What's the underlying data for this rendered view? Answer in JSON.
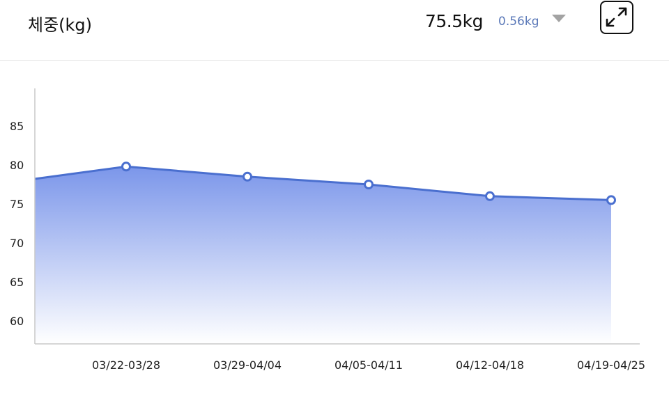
{
  "header": {
    "title": "체중(kg)",
    "current_value": "75.5kg",
    "change_value": "0.56kg",
    "change_direction": "down",
    "expand_icon": "expand-arrows-icon"
  },
  "chart_data": {
    "type": "area",
    "categories": [
      "03/22-03/28",
      "03/29-04/04",
      "04/05-04/11",
      "04/12-04/18",
      "04/19-04/25"
    ],
    "series": [
      {
        "values": [
          79.8,
          78.5,
          77.5,
          76.0,
          75.5
        ]
      }
    ],
    "leading_value_offscreen": 77.7,
    "yticks": [
      60,
      65,
      70,
      75,
      80,
      85
    ],
    "ylim": [
      57,
      90
    ],
    "grid": false,
    "legend": "none",
    "colors": {
      "line": "#4a6fcf",
      "fill_top": "#7b96ea",
      "fill_bottom": "#ffffff",
      "marker_fill": "#ffffff"
    }
  }
}
